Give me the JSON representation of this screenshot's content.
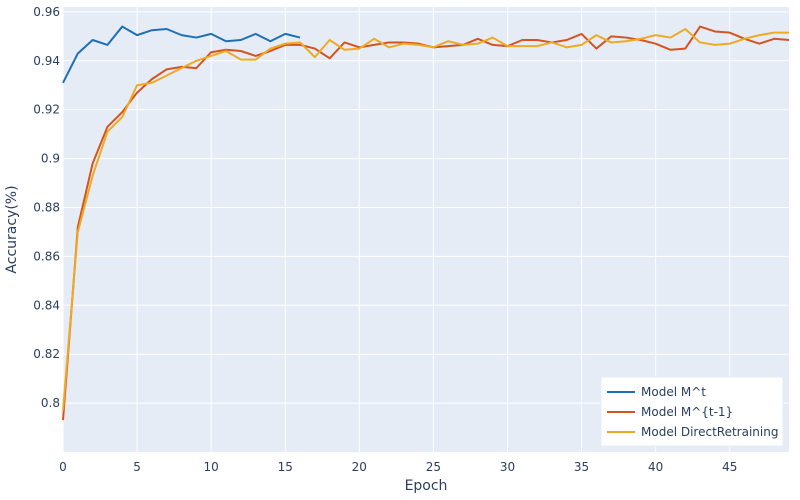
{
  "chart_data": {
    "type": "line",
    "title": "",
    "xlabel": "Epoch",
    "ylabel": "Accuracy(%)",
    "xlim": [
      0,
      49
    ],
    "ylim": [
      0.78,
      0.962
    ],
    "xticks": [
      0,
      5,
      10,
      15,
      20,
      25,
      30,
      35,
      40,
      45
    ],
    "yticks": [
      0.8,
      0.82,
      0.84,
      0.86,
      0.88,
      0.9,
      0.92,
      0.94,
      0.96
    ],
    "ytick_labels": [
      "0.8",
      "0.82",
      "0.84",
      "0.86",
      "0.88",
      "0.9",
      "0.92",
      "0.94",
      "0.96"
    ],
    "grid": true,
    "legend_position": "bottom-right",
    "colors": {
      "plot_bg": "#e5ecf6",
      "grid": "#ffffff",
      "axis_text": "#2a3f5f"
    },
    "series": [
      {
        "name": "Model M^t",
        "color": "#1f6fb4",
        "x": [
          0,
          1,
          2,
          3,
          4,
          5,
          6,
          7,
          8,
          9,
          10,
          11,
          12,
          13,
          14,
          15,
          16
        ],
        "y": [
          0.931,
          0.943,
          0.9485,
          0.9465,
          0.954,
          0.9505,
          0.9525,
          0.953,
          0.9505,
          0.9495,
          0.951,
          0.948,
          0.9485,
          0.951,
          0.948,
          0.951,
          0.9495
        ]
      },
      {
        "name": "Model M^{t-1}",
        "color": "#d4531f",
        "x": [
          0,
          1,
          2,
          3,
          4,
          5,
          6,
          7,
          8,
          9,
          10,
          11,
          12,
          13,
          14,
          15,
          16,
          17,
          18,
          19,
          20,
          21,
          22,
          23,
          24,
          25,
          26,
          27,
          28,
          29,
          30,
          31,
          32,
          33,
          34,
          35,
          36,
          37,
          38,
          39,
          40,
          41,
          42,
          43,
          44,
          45,
          46,
          47,
          48,
          49
        ],
        "y": [
          0.793,
          0.872,
          0.898,
          0.913,
          0.919,
          0.927,
          0.9325,
          0.9365,
          0.9375,
          0.937,
          0.9435,
          0.9445,
          0.944,
          0.942,
          0.944,
          0.9465,
          0.9465,
          0.945,
          0.941,
          0.9475,
          0.9455,
          0.9465,
          0.9475,
          0.9475,
          0.947,
          0.9455,
          0.946,
          0.9465,
          0.949,
          0.9465,
          0.946,
          0.9485,
          0.9485,
          0.9475,
          0.9485,
          0.951,
          0.945,
          0.95,
          0.9495,
          0.9485,
          0.947,
          0.9445,
          0.945,
          0.954,
          0.952,
          0.9515,
          0.949,
          0.947,
          0.949,
          0.9485
        ]
      },
      {
        "name": "Model DirectRetraining",
        "color": "#eeaa22",
        "x": [
          0,
          1,
          2,
          3,
          4,
          5,
          6,
          7,
          8,
          9,
          10,
          11,
          12,
          13,
          14,
          15,
          16,
          17,
          18,
          19,
          20,
          21,
          22,
          23,
          24,
          25,
          26,
          27,
          28,
          29,
          30,
          31,
          32,
          33,
          34,
          35,
          36,
          37,
          38,
          39,
          40,
          41,
          42,
          43,
          44,
          45,
          46,
          47,
          48,
          49
        ],
        "y": [
          0.797,
          0.87,
          0.893,
          0.911,
          0.917,
          0.93,
          0.931,
          0.934,
          0.937,
          0.94,
          0.942,
          0.944,
          0.9405,
          0.9405,
          0.945,
          0.947,
          0.9475,
          0.9415,
          0.9485,
          0.9445,
          0.945,
          0.949,
          0.9455,
          0.947,
          0.9465,
          0.9455,
          0.948,
          0.9465,
          0.947,
          0.9495,
          0.946,
          0.946,
          0.946,
          0.9475,
          0.9455,
          0.9465,
          0.9505,
          0.9475,
          0.948,
          0.949,
          0.9505,
          0.9495,
          0.953,
          0.9475,
          0.9465,
          0.947,
          0.949,
          0.9505,
          0.9515,
          0.9515
        ]
      }
    ]
  }
}
